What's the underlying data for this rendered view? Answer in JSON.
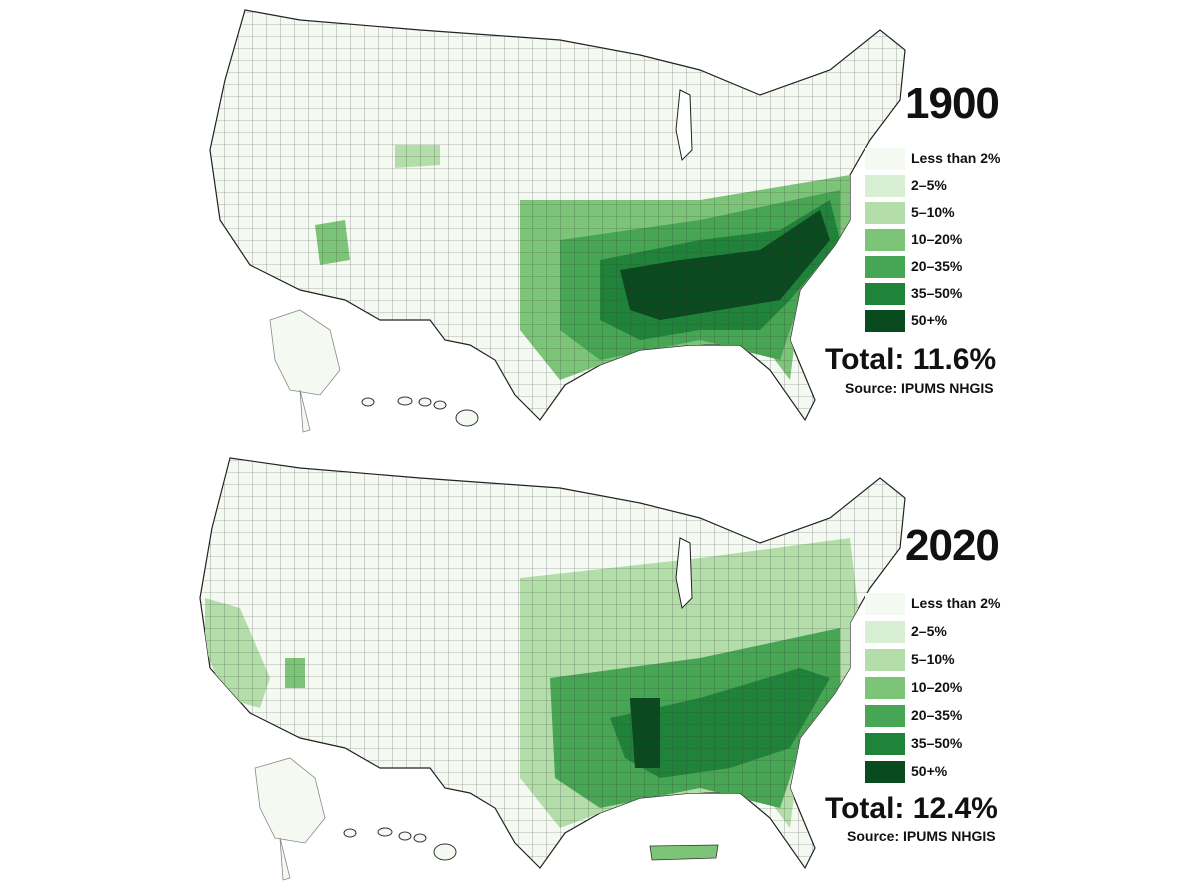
{
  "maps": [
    {
      "year": "1900",
      "total": "Total: 11.6%",
      "source": "Source: IPUMS NHGIS"
    },
    {
      "year": "2020",
      "total": "Total: 12.4%",
      "source": "Source: IPUMS NHGIS"
    }
  ],
  "legend": {
    "items": [
      {
        "label": "Less than 2%",
        "color": "#f4faf2"
      },
      {
        "label": "2–5%",
        "color": "#d9efd3"
      },
      {
        "label": "5–10%",
        "color": "#b3dea9"
      },
      {
        "label": "10–20%",
        "color": "#7cc477"
      },
      {
        "label": "20–35%",
        "color": "#47a653"
      },
      {
        "label": "35–50%",
        "color": "#1f8439"
      },
      {
        "label": "50+%",
        "color": "#0a4a1f"
      }
    ]
  }
}
